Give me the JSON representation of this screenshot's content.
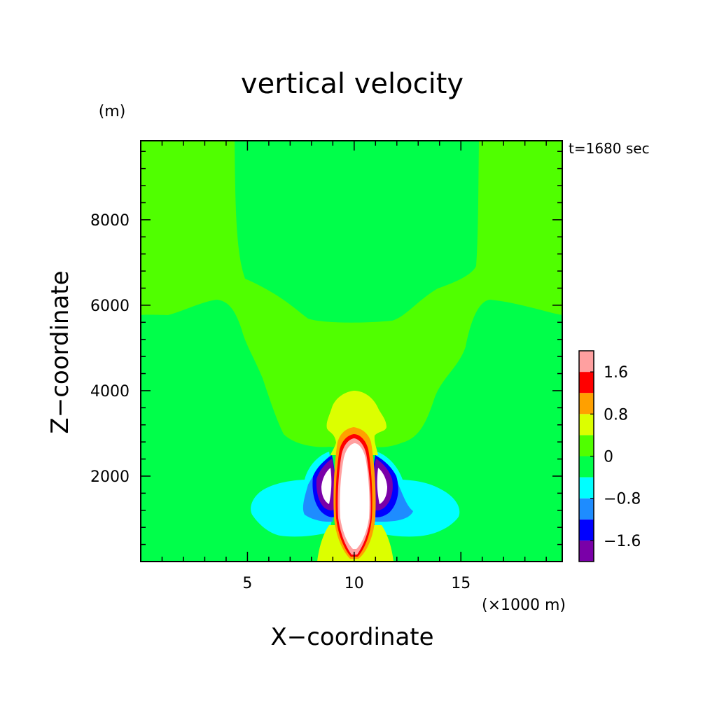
{
  "chart_data": {
    "type": "heatmap",
    "subtype": "filled-contour",
    "title": "vertical velocity",
    "time_label": "t=1680 sec",
    "xlabel": "X−coordinate",
    "ylabel": "Z−coordinate",
    "x_unit_label": "(×1000 m)",
    "y_unit_label": "(m)",
    "xlim": [
      0,
      19.75
    ],
    "ylim": [
      0,
      9850
    ],
    "x_major_ticks": [
      5,
      10,
      15
    ],
    "x_tick_labels": [
      "5",
      "10",
      "15"
    ],
    "x_minor_step": 1,
    "y_major_ticks": [
      2000,
      4000,
      6000,
      8000
    ],
    "y_tick_labels": [
      "2000",
      "4000",
      "6000",
      "8000"
    ],
    "y_minor_step": 400,
    "legend_position": "right",
    "colorbar": {
      "levels": [
        {
          "min": null,
          "max": -1.6,
          "color": "#7a00a8"
        },
        {
          "min": -1.6,
          "max": -1.2,
          "color": "#0000ff"
        },
        {
          "min": -1.2,
          "max": -0.8,
          "color": "#1e8cff"
        },
        {
          "min": -0.8,
          "max": -0.4,
          "color": "#00ffff"
        },
        {
          "min": -0.4,
          "max": 0.0,
          "color": "#00ff4a"
        },
        {
          "min": 0.0,
          "max": 0.4,
          "color": "#50ff00"
        },
        {
          "min": 0.4,
          "max": 0.8,
          "color": "#dcff00"
        },
        {
          "min": 0.8,
          "max": 1.2,
          "color": "#ffa000"
        },
        {
          "min": 1.2,
          "max": 1.6,
          "color": "#ff0000"
        },
        {
          "min": 1.6,
          "max": 2.0,
          "color": "#ffa0a0"
        }
      ],
      "above_max_color": "#ffffff",
      "tick_values": [
        1.6,
        0.8,
        0,
        -0.8,
        -1.6
      ],
      "tick_labels": [
        "1.6",
        "0.8",
        "0",
        "−0.8",
        "−1.6"
      ]
    },
    "regions": [
      {
        "level": "0 to 0.4",
        "description": "upper-atmosphere band above about 6000 m and a broad bowl narrowing downward to about 2700 m near x=10"
      },
      {
        "level": "-0.4 to 0",
        "description": "background across the rest of the domain including central column above about 5700 m"
      },
      {
        "level": "-0.8 to -0.4",
        "description": "broad downdraft wings on both sides of the updraft, about 500-2000 m"
      },
      {
        "level": "-1.2 to -0.8",
        "description": "inner downdraft flanks around x=8.3-9 and 11-11.8"
      },
      {
        "level": "-1.6 to -1.2",
        "description": "thin downdraft bands adjacent to the purple cores"
      },
      {
        "level": "< -1.6",
        "description": "downdraft cores near x=8.7 and x=11.5, about 1000-2600 m"
      },
      {
        "level": "0.4 to 0.8",
        "description": "cap above the updraft to about 4000 m with two lobes, and foot near surface"
      },
      {
        "level": "0.8 to 1.2",
        "description": "shell around the updraft to about 3100 m"
      },
      {
        "level": "1.2 to 1.6",
        "description": "shell around the updraft to about 2950 m"
      },
      {
        "level": "1.6 to 2.0",
        "description": "thin inner shell around the core"
      },
      {
        "level": "> 2.0",
        "description": "updraft core centred at x=10, about 200-2700 m"
      }
    ]
  }
}
